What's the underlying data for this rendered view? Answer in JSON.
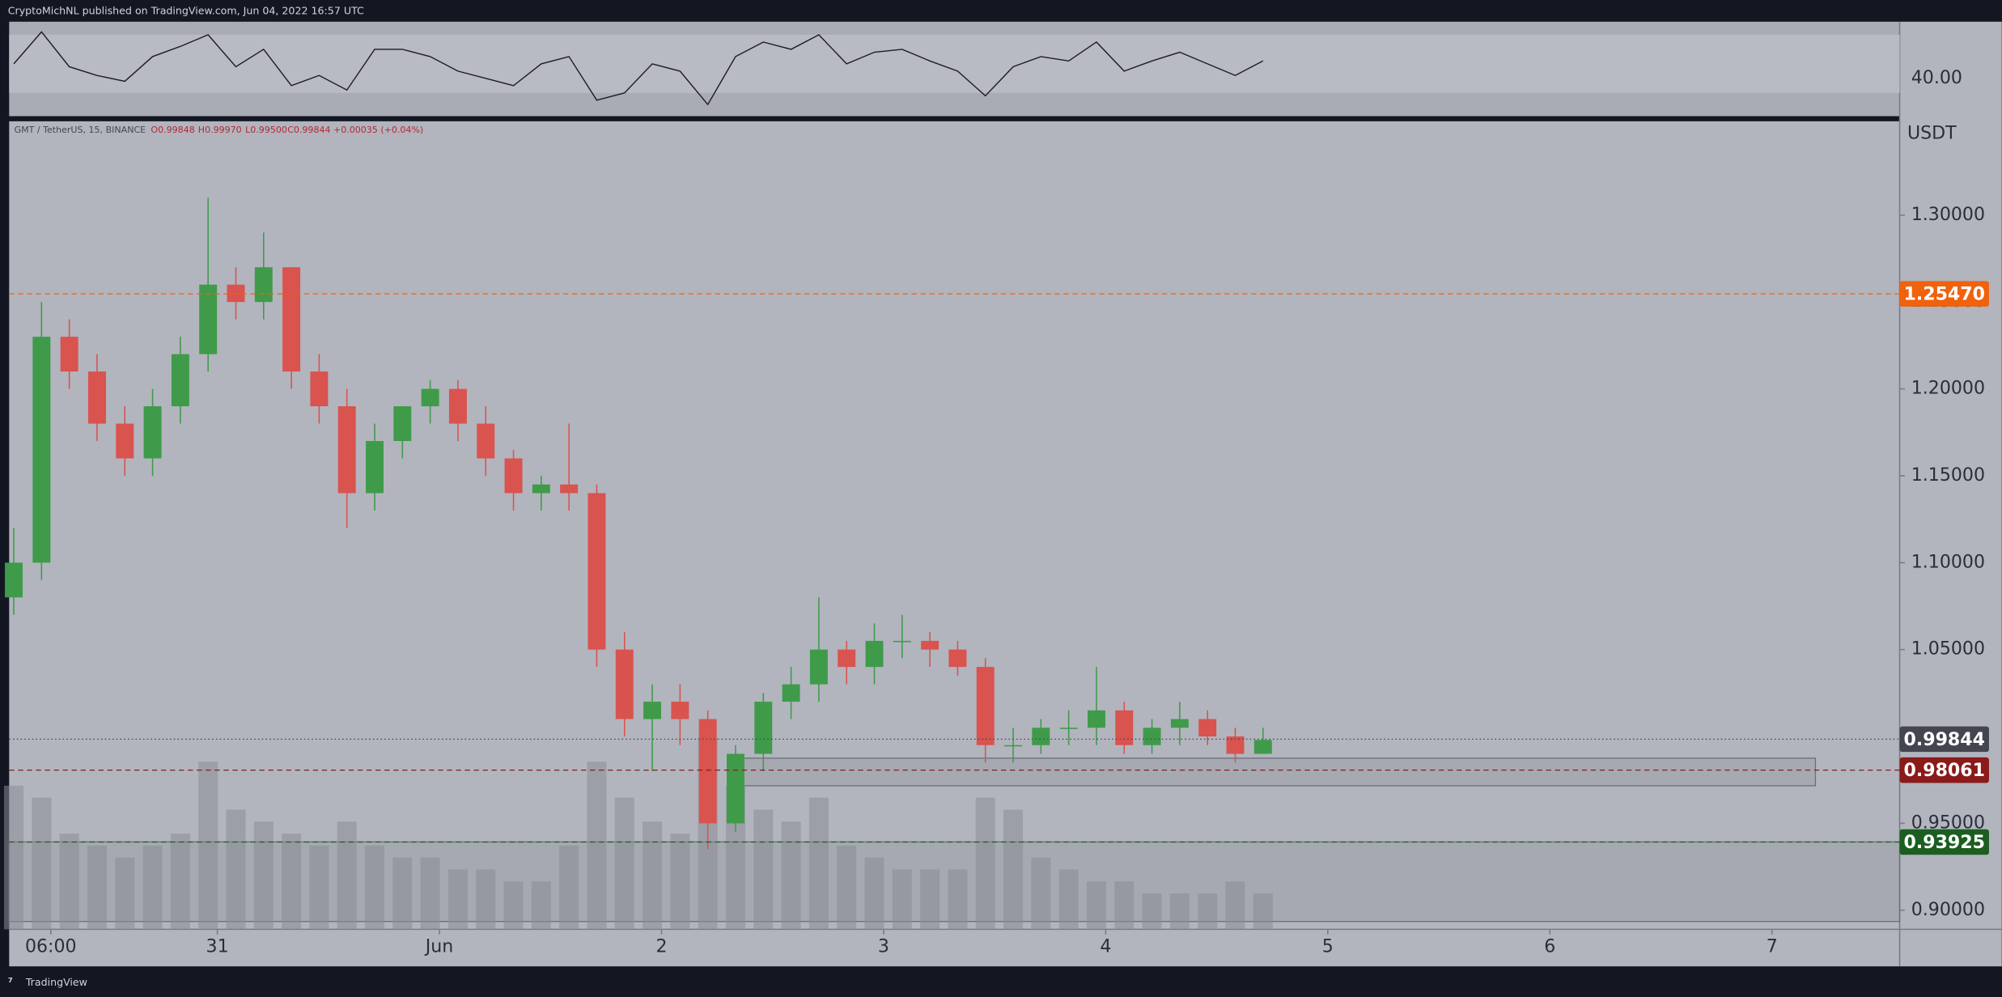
{
  "header": "CryptoMichNL published on TradingView.com, Jun 04, 2022 16:57 UTC",
  "footer": "TradingView",
  "chart_data": {
    "type": "candlestick",
    "legend": {
      "symbol": "GMT / TetherUS, 15, BINANCE",
      "open": "O0.99848",
      "high": "H0.99970",
      "low": "L0.99500",
      "close": "C0.99844",
      "change": "+0.00035 (+0.04%)"
    },
    "axis_unit": "USDT",
    "x": [
      2,
      5,
      8,
      11,
      14,
      17,
      20,
      23,
      26,
      29,
      32,
      35,
      38,
      41,
      44,
      47,
      50,
      53,
      56,
      59,
      62,
      65,
      68,
      71,
      74,
      77,
      80,
      83,
      86,
      89,
      92,
      95,
      98,
      101,
      104,
      107,
      110,
      113,
      116,
      119,
      122,
      125,
      128,
      131,
      134,
      137
    ],
    "open": [
      1.08,
      1.1,
      1.23,
      1.21,
      1.18,
      1.16,
      1.19,
      1.22,
      1.26,
      1.25,
      1.27,
      1.21,
      1.19,
      1.14,
      1.17,
      1.19,
      1.2,
      1.18,
      1.16,
      1.14,
      1.145,
      1.14,
      1.05,
      1.01,
      1.02,
      1.01,
      0.95,
      0.99,
      1.02,
      1.03,
      1.05,
      1.04,
      1.055,
      1.055,
      1.05,
      1.04,
      0.995,
      0.995,
      1.005,
      1.005,
      1.015,
      0.995,
      1.005,
      1.01,
      1.0,
      0.99
    ],
    "high": [
      1.12,
      1.25,
      1.24,
      1.22,
      1.19,
      1.2,
      1.23,
      1.31,
      1.27,
      1.29,
      1.27,
      1.22,
      1.2,
      1.18,
      1.19,
      1.205,
      1.205,
      1.19,
      1.165,
      1.15,
      1.18,
      1.145,
      1.06,
      1.03,
      1.03,
      1.015,
      0.995,
      1.025,
      1.04,
      1.08,
      1.055,
      1.065,
      1.07,
      1.06,
      1.055,
      1.045,
      1.005,
      1.01,
      1.015,
      1.04,
      1.02,
      1.01,
      1.02,
      1.015,
      1.005,
      1.005
    ],
    "low": [
      1.07,
      1.09,
      1.2,
      1.17,
      1.15,
      1.15,
      1.18,
      1.21,
      1.24,
      1.24,
      1.2,
      1.18,
      1.12,
      1.13,
      1.16,
      1.18,
      1.17,
      1.15,
      1.13,
      1.13,
      1.13,
      1.04,
      1.0,
      0.98,
      0.995,
      0.935,
      0.945,
      0.98,
      1.01,
      1.02,
      1.03,
      1.03,
      1.045,
      1.04,
      1.035,
      0.985,
      0.985,
      0.99,
      0.995,
      0.995,
      0.99,
      0.99,
      0.995,
      0.995,
      0.985,
      0.99
    ],
    "close": [
      1.1,
      1.23,
      1.21,
      1.18,
      1.16,
      1.19,
      1.22,
      1.26,
      1.25,
      1.27,
      1.21,
      1.19,
      1.14,
      1.17,
      1.19,
      1.2,
      1.18,
      1.16,
      1.14,
      1.145,
      1.14,
      1.05,
      1.01,
      1.02,
      1.01,
      0.95,
      0.99,
      1.02,
      1.03,
      1.05,
      1.04,
      1.055,
      1.055,
      1.05,
      1.04,
      0.995,
      0.995,
      1.005,
      1.005,
      1.015,
      0.995,
      1.005,
      1.01,
      1.0,
      0.99,
      0.998
    ],
    "volume": [
      60,
      55,
      40,
      35,
      30,
      35,
      40,
      70,
      50,
      45,
      40,
      35,
      45,
      35,
      30,
      30,
      25,
      25,
      20,
      20,
      35,
      70,
      55,
      45,
      40,
      80,
      60,
      50,
      45,
      55,
      35,
      30,
      25,
      25,
      25,
      55,
      50,
      30,
      25,
      20,
      20,
      15,
      15,
      15,
      20,
      15
    ],
    "rsi": [
      50,
      72,
      48,
      42,
      38,
      55,
      62,
      70,
      48,
      60,
      35,
      42,
      32,
      60,
      60,
      55,
      45,
      40,
      35,
      50,
      55,
      25,
      30,
      50,
      45,
      22,
      55,
      65,
      60,
      70,
      50,
      58,
      60,
      52,
      45,
      28,
      48,
      55,
      52,
      65,
      45,
      52,
      58,
      50,
      42,
      52
    ],
    "rsi_band": [
      30,
      70
    ],
    "rsi_ylim": [
      14,
      79
    ],
    "rsi_ticks": [
      {
        "value": 40,
        "label": "40.00"
      }
    ],
    "up_color": "#3f9b4a",
    "down_color": "#d9534f",
    "xlim": [
      1.5,
      205.8
    ],
    "ylim": [
      0.889,
      1.354
    ],
    "xticks": [
      {
        "value": 6,
        "label": "06:00"
      },
      {
        "value": 24,
        "label": "31"
      },
      {
        "value": 48,
        "label": "Jun"
      },
      {
        "value": 72,
        "label": "2"
      },
      {
        "value": 96,
        "label": "3"
      },
      {
        "value": 120,
        "label": "4"
      },
      {
        "value": 144,
        "label": "5"
      },
      {
        "value": 168,
        "label": "6"
      },
      {
        "value": 192,
        "label": "7"
      }
    ],
    "yticks": [
      {
        "value": 1.3,
        "label": "1.30000"
      },
      {
        "value": 1.25,
        "label": "1.25000"
      },
      {
        "value": 1.2,
        "label": "1.20000"
      },
      {
        "value": 1.15,
        "label": "1.15000"
      },
      {
        "value": 1.1,
        "label": "1.10000"
      },
      {
        "value": 1.05,
        "label": "1.05000"
      },
      {
        "value": 1.0,
        "label": "1.00000"
      },
      {
        "value": 0.95,
        "label": "0.95000"
      },
      {
        "value": 0.9,
        "label": "0.90000"
      }
    ],
    "levels": [
      {
        "value": 1.2547,
        "label": "1.25470",
        "color": "#f0620c",
        "dash": "4 3"
      },
      {
        "value": 0.99844,
        "label": "0.99844",
        "color": "#434651",
        "dash": "1 2"
      },
      {
        "value": 0.98061,
        "label": "0.98061",
        "color": "#8b1a1a",
        "dash": "4 3"
      },
      {
        "value": 0.93925,
        "label": "0.93925",
        "color": "#1b5e20",
        "dash": "4 3"
      }
    ],
    "zones": [
      {
        "x": [
          79.9,
          196.7
        ],
        "y": [
          0.9716,
          0.9875
        ]
      },
      {
        "x": [
          1.5,
          205.8
        ],
        "y": [
          0.8935,
          0.9393
        ]
      }
    ]
  }
}
